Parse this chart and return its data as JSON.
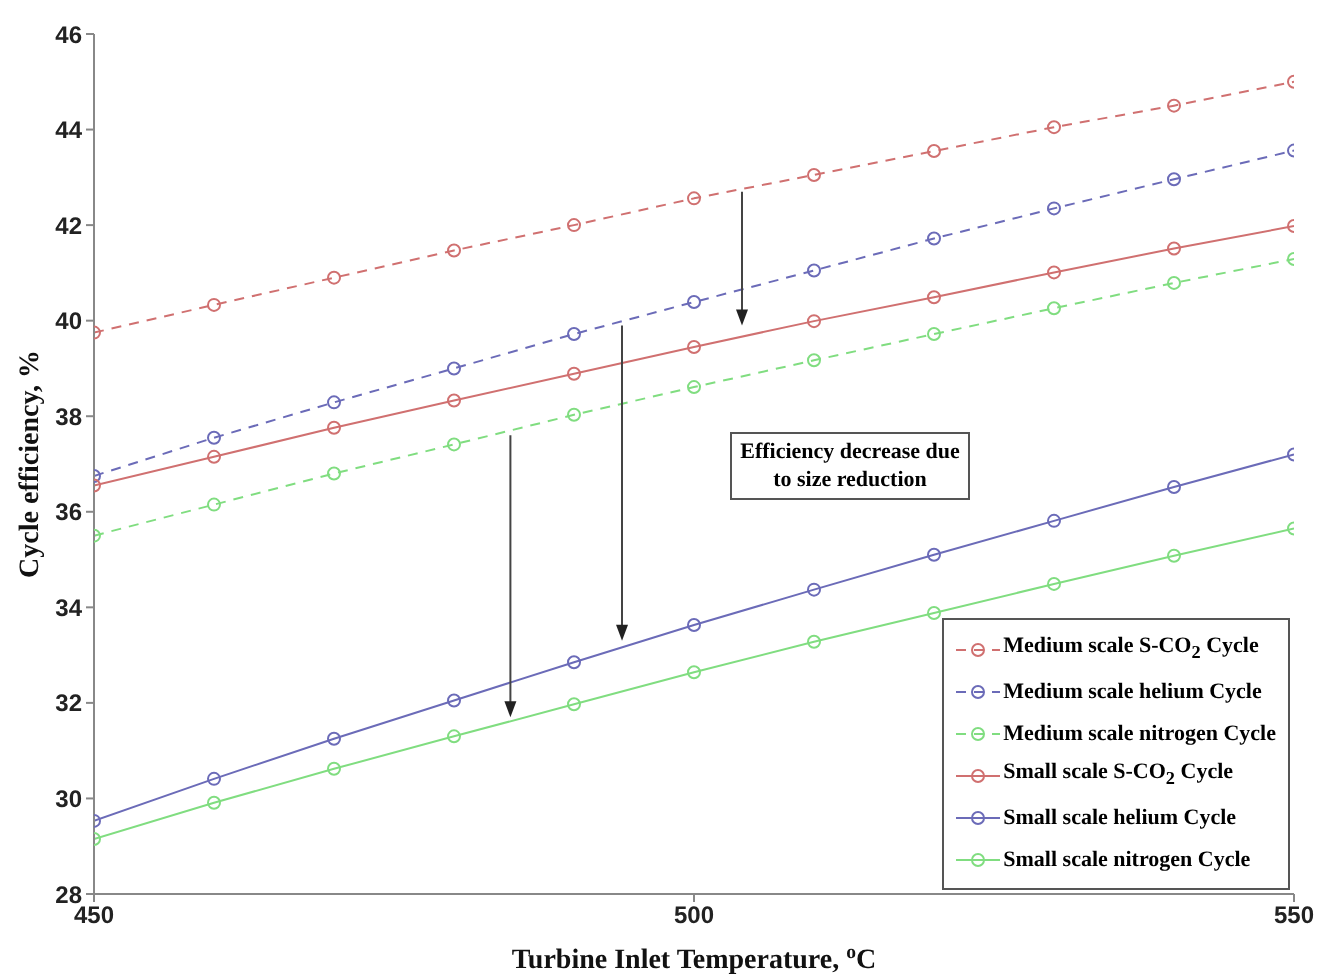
{
  "chart_data": {
    "type": "line",
    "xlabel": "Turbine Inlet Temperature, $^{o}$C",
    "ylabel": "Cycle efficiency, %",
    "x": [
      450,
      460,
      470,
      480,
      490,
      500,
      510,
      520,
      530,
      540,
      550
    ],
    "xlim": [
      450,
      550
    ],
    "xticks": [
      450,
      500,
      550
    ],
    "ylim": [
      28,
      46
    ],
    "yticks": [
      28,
      30,
      32,
      34,
      36,
      38,
      40,
      42,
      44,
      46
    ],
    "grid": false,
    "legend": "bottom right",
    "marker": "circle",
    "annotations": [
      "Efficiency decrease due to size reduction"
    ],
    "series": [
      {
        "name": "Medium scale S-CO$_{2}$ Cycle",
        "color": "#d07070",
        "line_style": "dashed",
        "values": [
          39.75,
          40.33,
          40.9,
          41.47,
          42.0,
          42.56,
          43.05,
          43.55,
          44.05,
          44.5,
          45.0
        ]
      },
      {
        "name": "Medium scale helium Cycle",
        "color": "#6b6bb8",
        "line_style": "dashed",
        "values": [
          36.75,
          37.55,
          38.29,
          39.0,
          39.72,
          40.39,
          41.05,
          41.72,
          42.35,
          42.96,
          43.56
        ]
      },
      {
        "name": "Medium scale nitrogen Cycle",
        "color": "#80dd80",
        "line_style": "dashed",
        "values": [
          35.5,
          36.15,
          36.8,
          37.41,
          38.03,
          38.61,
          39.17,
          39.72,
          40.26,
          40.79,
          41.29
        ]
      },
      {
        "name": "Small scale S-CO$_{2}$ Cycle",
        "color": "#d07070",
        "line_style": "solid",
        "values": [
          36.55,
          37.15,
          37.76,
          38.33,
          38.89,
          39.45,
          39.99,
          40.49,
          41.01,
          41.51,
          41.98
        ]
      },
      {
        "name": "Small scale helium Cycle",
        "color": "#6b6bb8",
        "line_style": "solid",
        "values": [
          29.53,
          30.41,
          31.25,
          32.05,
          32.85,
          33.63,
          34.37,
          35.1,
          35.81,
          36.52,
          37.2
        ]
      },
      {
        "name": "Small scale nitrogen Cycle",
        "color": "#80dd80",
        "line_style": "solid",
        "values": [
          29.15,
          29.91,
          30.62,
          31.3,
          31.97,
          32.64,
          33.28,
          33.88,
          34.49,
          35.08,
          35.65
        ]
      }
    ]
  }
}
